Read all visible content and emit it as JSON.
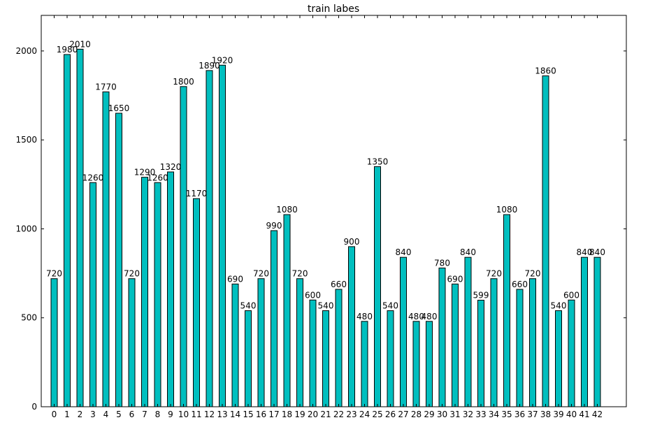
{
  "chart_data": {
    "type": "bar",
    "title": "train labes",
    "xlabel": "",
    "ylabel": "",
    "categories": [
      "0",
      "1",
      "2",
      "3",
      "4",
      "5",
      "6",
      "7",
      "8",
      "9",
      "10",
      "11",
      "12",
      "13",
      "14",
      "15",
      "16",
      "17",
      "18",
      "19",
      "20",
      "21",
      "22",
      "23",
      "24",
      "25",
      "26",
      "27",
      "28",
      "29",
      "30",
      "31",
      "32",
      "33",
      "34",
      "35",
      "36",
      "37",
      "38",
      "39",
      "40",
      "41",
      "42"
    ],
    "values": [
      720,
      1980,
      2010,
      1260,
      1770,
      1650,
      720,
      1290,
      1260,
      1320,
      1800,
      1170,
      1890,
      1920,
      690,
      540,
      720,
      990,
      1080,
      720,
      600,
      540,
      660,
      900,
      480,
      1350,
      540,
      840,
      480,
      480,
      780,
      690,
      840,
      599,
      720,
      1080,
      660,
      720,
      1860,
      540,
      600,
      840,
      840
    ],
    "data_labels": [
      "720",
      "1980",
      "2010",
      "1260",
      "1770",
      "1650",
      "720",
      "1290",
      "1260",
      "1320",
      "1800",
      "1170",
      "1890",
      "1920",
      "690",
      "540",
      "720",
      "990",
      "1080",
      "720",
      "600",
      "540",
      "660",
      "900",
      "480",
      "1350",
      "540",
      "840",
      "480",
      "480",
      "780",
      "690",
      "840",
      "599",
      "720",
      "1080",
      "660",
      "720",
      "1860",
      "540",
      "600",
      "840",
      "840"
    ],
    "ylim": [
      0,
      2200
    ],
    "yticks": [
      0,
      500,
      1000,
      1500,
      2000
    ],
    "ytick_labels": [
      "0",
      "500",
      "1000",
      "1500",
      "2000"
    ],
    "grid": false,
    "legend": "none",
    "bar_color": "#00bfbf",
    "edge_color": "#000000"
  }
}
